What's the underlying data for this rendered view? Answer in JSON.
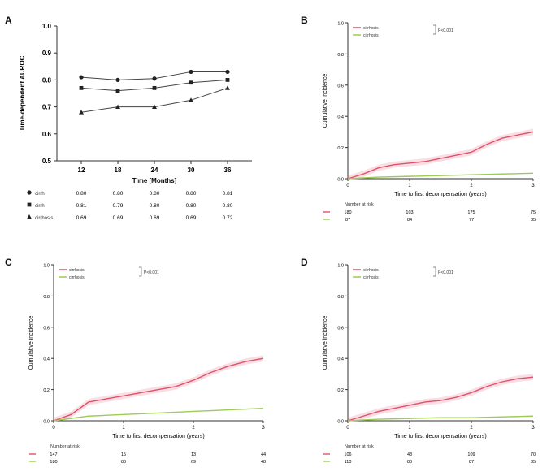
{
  "panel_labels": [
    "A",
    "B",
    "C",
    "D"
  ],
  "chart_data": [
    {
      "panel": "A",
      "type": "line",
      "ylabel": "Time-dependent AUROC",
      "xlabel": "Time [Months]",
      "x": [
        12,
        18,
        24,
        30,
        36
      ],
      "xticks": [
        "12",
        "18",
        "24",
        "30",
        "36"
      ],
      "ylim": [
        0.5,
        1.0
      ],
      "yticks": [
        "0.5",
        "0.6",
        "0.7",
        "0.8",
        "0.9",
        "1.0"
      ],
      "grid": false,
      "series": [
        {
          "marker": "circle",
          "values": [
            0.81,
            0.8,
            0.805,
            0.83,
            0.83
          ]
        },
        {
          "marker": "square",
          "values": [
            0.77,
            0.76,
            0.77,
            0.79,
            0.8
          ]
        },
        {
          "marker": "triangle",
          "values": [
            0.68,
            0.7,
            0.7,
            0.725,
            0.77
          ]
        }
      ],
      "table": {
        "rows": [
          {
            "marker": "circle",
            "label": "cirrh",
            "values": [
              "0.80",
              "0.80",
              "0.80",
              "0.80",
              "0.81"
            ]
          },
          {
            "marker": "square",
            "label": "cirrh",
            "values": [
              "0.81",
              "0.79",
              "0.80",
              "0.80",
              "0.80"
            ]
          },
          {
            "marker": "triangle",
            "label": "cirrhosis",
            "values": [
              "0.69",
              "0.69",
              "0.69",
              "0.69",
              "0.72"
            ]
          }
        ]
      }
    },
    {
      "panel": "B",
      "type": "line",
      "ylabel": "Cumulative incidence",
      "xlabel": "Time to first decompensation (years)",
      "xlim": [
        0,
        3
      ],
      "xticks": [
        "0",
        "1",
        "2",
        "3"
      ],
      "ylim": [
        0,
        1.0
      ],
      "yticks": [
        "0.0",
        "0.2",
        "0.4",
        "0.6",
        "0.8",
        "1.0"
      ],
      "legend_position": "top-left",
      "legend": [
        "cirrhosis",
        "cirrhosis"
      ],
      "legend_note": "P<0.001",
      "series": [
        {
          "name": "cirrhosis",
          "color": "#e0506a",
          "x": [
            0,
            0.25,
            0.5,
            0.75,
            1.0,
            1.25,
            1.5,
            1.75,
            2.0,
            2.25,
            2.5,
            2.75,
            3.0
          ],
          "values": [
            0.0,
            0.03,
            0.07,
            0.09,
            0.1,
            0.11,
            0.13,
            0.15,
            0.17,
            0.22,
            0.26,
            0.28,
            0.3
          ]
        },
        {
          "name": "cirrhosis",
          "color": "#9ccc55",
          "x": [
            0,
            0.5,
            1.0,
            1.5,
            2.0,
            2.5,
            3.0
          ],
          "values": [
            0.0,
            0.01,
            0.015,
            0.02,
            0.025,
            0.03,
            0.035
          ]
        }
      ],
      "risk_table": {
        "title": "Number at risk",
        "rows": [
          [
            "180",
            "103",
            "175",
            "75"
          ],
          [
            "87",
            "84",
            "77",
            "35"
          ]
        ]
      }
    },
    {
      "panel": "C",
      "type": "line",
      "ylabel": "Cumulative incidence",
      "xlabel": "Time to first decompensation (years)",
      "xlim": [
        0,
        3
      ],
      "xticks": [
        "0",
        "1",
        "2",
        "3"
      ],
      "ylim": [
        0,
        1.0
      ],
      "yticks": [
        "0.0",
        "0.2",
        "0.4",
        "0.6",
        "0.8",
        "1.0"
      ],
      "legend_position": "top-left",
      "legend": [
        "cirrhosis",
        "cirrhosis"
      ],
      "legend_note": "P<0.001",
      "series": [
        {
          "name": "cirrhosis",
          "color": "#e0506a",
          "x": [
            0,
            0.25,
            0.5,
            0.75,
            1.0,
            1.25,
            1.5,
            1.75,
            2.0,
            2.25,
            2.5,
            2.75,
            3.0
          ],
          "values": [
            0.0,
            0.04,
            0.12,
            0.14,
            0.16,
            0.18,
            0.2,
            0.22,
            0.26,
            0.31,
            0.35,
            0.38,
            0.4
          ]
        },
        {
          "name": "cirrhosis",
          "color": "#9ccc55",
          "x": [
            0,
            0.5,
            1.0,
            1.5,
            2.0,
            2.5,
            3.0
          ],
          "values": [
            0.0,
            0.03,
            0.04,
            0.05,
            0.06,
            0.07,
            0.08
          ]
        }
      ],
      "risk_table": {
        "title": "Number at risk",
        "rows": [
          [
            "147",
            "15",
            "13",
            "44"
          ],
          [
            "180",
            "80",
            "69",
            "48"
          ]
        ]
      }
    },
    {
      "panel": "D",
      "type": "line",
      "ylabel": "Cumulative incidence",
      "xlabel": "Time to first decompensation (years)",
      "xlim": [
        0,
        3
      ],
      "xticks": [
        "0",
        "1",
        "2",
        "3"
      ],
      "ylim": [
        0,
        1.0
      ],
      "yticks": [
        "0.0",
        "0.2",
        "0.4",
        "0.6",
        "0.8",
        "1.0"
      ],
      "legend_position": "top-left",
      "legend": [
        "cirrhosis",
        "cirrhosis"
      ],
      "legend_note": "P<0.001",
      "series": [
        {
          "name": "cirrhosis",
          "color": "#e0506a",
          "x": [
            0,
            0.25,
            0.5,
            0.75,
            1.0,
            1.25,
            1.5,
            1.75,
            2.0,
            2.25,
            2.5,
            2.75,
            3.0
          ],
          "values": [
            0.0,
            0.03,
            0.06,
            0.08,
            0.1,
            0.12,
            0.13,
            0.15,
            0.18,
            0.22,
            0.25,
            0.27,
            0.28
          ]
        },
        {
          "name": "cirrhosis",
          "color": "#9ccc55",
          "x": [
            0,
            0.5,
            1.0,
            1.5,
            2.0,
            2.5,
            3.0
          ],
          "values": [
            0.0,
            0.01,
            0.015,
            0.02,
            0.02,
            0.025,
            0.03
          ]
        }
      ],
      "risk_table": {
        "title": "Number at risk",
        "rows": [
          [
            "106",
            "48",
            "109",
            "70"
          ],
          [
            "110",
            "80",
            "87",
            "35"
          ]
        ]
      }
    }
  ]
}
